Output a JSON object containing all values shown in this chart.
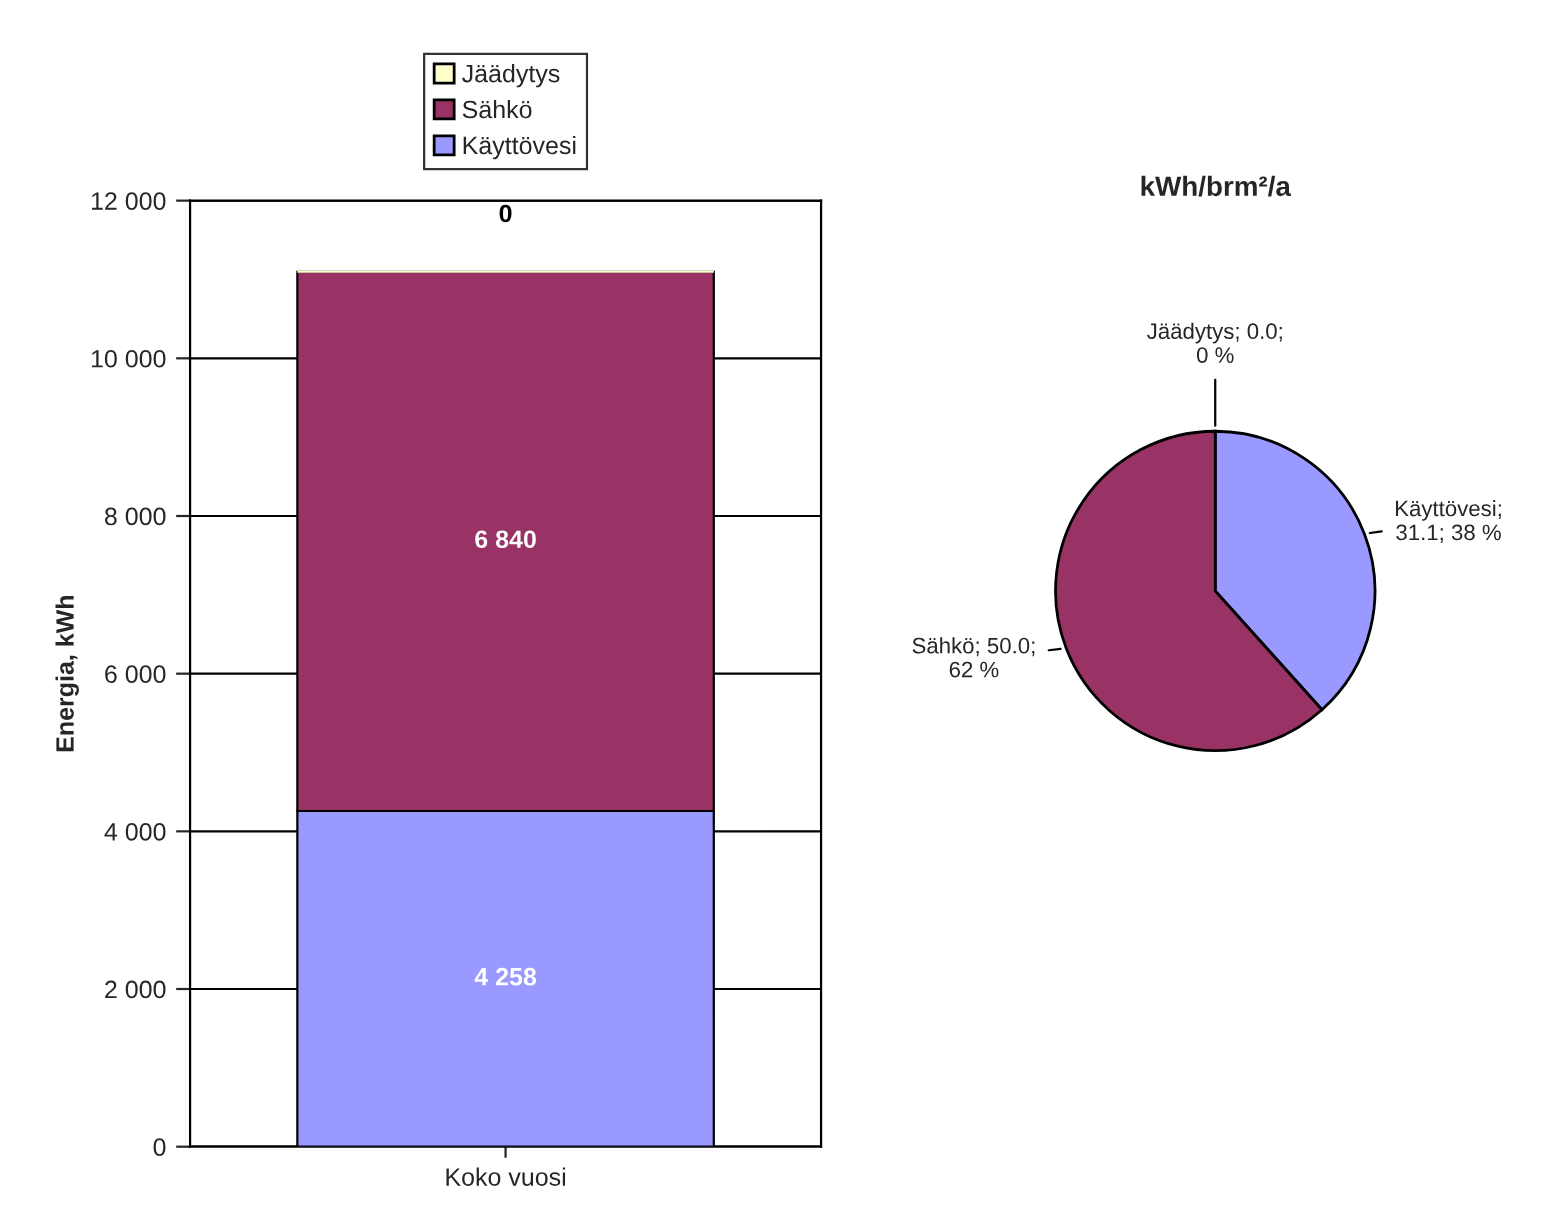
{
  "chart_data": [
    {
      "type": "bar",
      "stacked": true,
      "ylabel": "Energia, kWh",
      "categories": [
        "Koko vuosi"
      ],
      "series": [
        {
          "name": "Käyttövesi",
          "color": "#9999ff",
          "values": [
            4258
          ],
          "value_labels": [
            "4 258"
          ]
        },
        {
          "name": "Sähkö",
          "color": "#993366",
          "values": [
            6840
          ],
          "value_labels": [
            "6 840"
          ]
        },
        {
          "name": "Jäädytys",
          "color": "#ffffcc",
          "values": [
            0
          ],
          "value_labels": [
            "0"
          ]
        }
      ],
      "ylim": [
        0,
        12000
      ],
      "yticks": [
        0,
        {
          "value": 2000,
          "label": "2 000"
        },
        {
          "value": 4000,
          "label": "4 000"
        },
        {
          "value": 6000,
          "label": "6 000"
        },
        {
          "value": 8000,
          "label": "8 000"
        },
        {
          "value": 10000,
          "label": "10 000"
        },
        {
          "value": 12000,
          "label": "12 000"
        }
      ],
      "grid": "y",
      "legend": "top"
    },
    {
      "type": "pie",
      "title": "kWh/brm²/a",
      "categories": [
        "Jäädytys",
        "Käyttövesi",
        "Sähkö"
      ],
      "values": [
        0.0,
        31.1,
        50.0
      ],
      "colors": [
        "#ffffcc",
        "#9999ff",
        "#993366"
      ],
      "value_labels": [
        "; 0.0;\n0 %",
        ";\n31.1; 38 %",
        "; 50.0;\n62 %"
      ]
    }
  ]
}
